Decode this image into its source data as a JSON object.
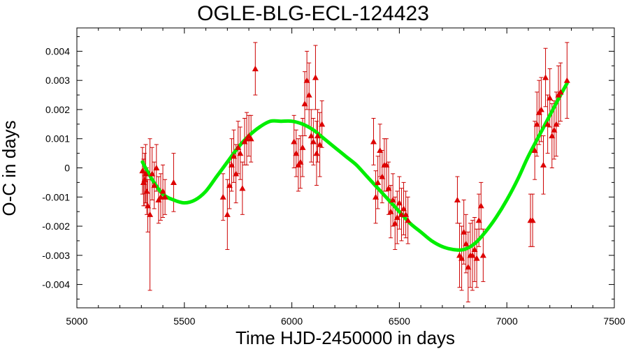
{
  "chart_data": {
    "type": "scatter",
    "title": "OGLE-BLG-ECL-124423",
    "xlabel": "Time HJD-2450000 in days",
    "ylabel": "O-C in days",
    "xlim": [
      5000,
      7500
    ],
    "ylim": [
      -0.0048,
      0.0048
    ],
    "x_ticks": [
      5000,
      5500,
      6000,
      6500,
      7000,
      7500
    ],
    "x_tick_labels": [
      "5000",
      "5500",
      "6000",
      "6500",
      "7000",
      "7500"
    ],
    "y_ticks": [
      0.004,
      0.003,
      0.002,
      0.001,
      0,
      -0.001,
      -0.002,
      -0.003,
      -0.004
    ],
    "y_tick_labels": [
      "0.004",
      "0.003",
      "0.002",
      "0.001",
      "0",
      "-0.001",
      "-0.002",
      "-0.003",
      "-0.004"
    ],
    "grid": false,
    "legend": "none",
    "colors": {
      "points": "#dd0000",
      "errorbars": "#cc0000",
      "fit": "#00ee00"
    },
    "series": [
      {
        "type": "scatter_errorbars",
        "marker": "triangle",
        "x": [
          5305,
          5310,
          5315,
          5320,
          5325,
          5330,
          5340,
          5350,
          5360,
          5370,
          5380,
          5390,
          5400,
          5410,
          5450,
          5680,
          5700,
          5710,
          5720,
          5730,
          5740,
          5750,
          5760,
          5770,
          5780,
          5790,
          5800,
          5810,
          5830,
          6010,
          6020,
          6030,
          6040,
          6050,
          6060,
          6070,
          6080,
          6090,
          6100,
          6110,
          6115,
          6120,
          6130,
          6140,
          6380,
          6390,
          6400,
          6410,
          6420,
          6430,
          6440,
          6450,
          6460,
          6470,
          6480,
          6490,
          6500,
          6510,
          6520,
          6530,
          6540,
          6770,
          6780,
          6790,
          6800,
          6810,
          6820,
          6830,
          6840,
          6850,
          6860,
          6870,
          6880,
          6890,
          7110,
          7120,
          7130,
          7140,
          7150,
          7160,
          7170,
          7180,
          7190,
          7200,
          7210,
          7220,
          7230,
          7240,
          7250,
          7280
        ],
        "y": [
          -0.0001,
          -0.0005,
          -0.0004,
          -0.0002,
          -0.0008,
          -0.0013,
          -0.0016,
          -0.0002,
          -0.0006,
          0.0,
          -0.0011,
          -0.001,
          -0.0008,
          -0.001,
          -0.0005,
          -0.001,
          -0.0016,
          -0.0006,
          0.0001,
          0.0004,
          -0.0002,
          0.0007,
          0.0005,
          -0.0007,
          0.0009,
          0.001,
          0.0011,
          0.001,
          0.0034,
          0.0009,
          0.0005,
          0.0001,
          0.0002,
          0.0007,
          0.0022,
          0.003,
          0.0025,
          0.0011,
          0.0009,
          0.0031,
          0.0005,
          0.0011,
          0.0008,
          0.0015,
          0.0009,
          -0.001,
          -0.0005,
          0.0006,
          -0.0003,
          0.0001,
          0.0001,
          -0.0007,
          -0.0015,
          -0.0011,
          -0.0019,
          -0.0017,
          -0.0012,
          -0.0016,
          -0.0014,
          -0.0016,
          -0.0018,
          -0.0011,
          -0.003,
          -0.0031,
          -0.0022,
          -0.0026,
          -0.0034,
          -0.003,
          -0.003,
          -0.0028,
          -0.0031,
          -0.0018,
          -0.0013,
          -0.003,
          -0.0018,
          -0.0018,
          0.0006,
          0.0015,
          0.0019,
          0.002,
          0.0001,
          0.0031,
          0.0015,
          0.0024,
          0.0011,
          0.0013,
          0.0015,
          0.0025,
          0.0026,
          0.003
        ],
        "err": [
          0.0008,
          0.0008,
          0.0009,
          0.001,
          0.0008,
          0.0009,
          0.0026,
          0.0009,
          0.0008,
          0.0008,
          0.0008,
          0.0008,
          0.0009,
          0.0006,
          0.001,
          0.0008,
          0.0012,
          0.0008,
          0.0009,
          0.0009,
          0.001,
          0.0009,
          0.0009,
          0.0009,
          0.0008,
          0.0009,
          0.0007,
          0.0008,
          0.0009,
          0.0009,
          0.0008,
          0.0009,
          0.0009,
          0.001,
          0.0011,
          0.001,
          0.0011,
          0.0009,
          0.0008,
          0.0011,
          0.0011,
          0.0009,
          0.0011,
          0.0008,
          0.0008,
          0.0009,
          0.0009,
          0.0009,
          0.0009,
          0.0009,
          0.0009,
          0.0009,
          0.0009,
          0.0009,
          0.0009,
          0.0009,
          0.0009,
          0.0009,
          0.0009,
          0.0008,
          0.0008,
          0.0008,
          0.0011,
          0.0011,
          0.0011,
          0.001,
          0.0012,
          0.0011,
          0.0012,
          0.0011,
          0.001,
          0.0009,
          0.0008,
          0.0009,
          0.0009,
          0.0009,
          0.001,
          0.0011,
          0.0011,
          0.0011,
          0.001,
          0.001,
          0.001,
          0.001,
          0.0011,
          0.001,
          0.0011,
          0.001,
          0.001,
          0.0013
        ]
      },
      {
        "type": "fit_line",
        "x": [
          5305,
          5350,
          5400,
          5450,
          5500,
          5550,
          5600,
          5650,
          5700,
          5750,
          5800,
          5850,
          5900,
          5950,
          6000,
          6050,
          6100,
          6150,
          6200,
          6250,
          6300,
          6350,
          6400,
          6450,
          6500,
          6550,
          6600,
          6650,
          6700,
          6750,
          6800,
          6850,
          6900,
          6950,
          7000,
          7050,
          7100,
          7150,
          7200,
          7250,
          7280
        ],
        "y": [
          0.0002,
          -0.0004,
          -0.0009,
          -0.0011,
          -0.0012,
          -0.0011,
          -0.0008,
          -0.0003,
          0.0002,
          0.0007,
          0.0011,
          0.0014,
          0.0016,
          0.0016,
          0.0016,
          0.0015,
          0.0013,
          0.001,
          0.0007,
          0.0004,
          0.0001,
          -0.0003,
          -0.0007,
          -0.0011,
          -0.0015,
          -0.0019,
          -0.0022,
          -0.0025,
          -0.0027,
          -0.0028,
          -0.0028,
          -0.0026,
          -0.0022,
          -0.0017,
          -0.0011,
          -0.0004,
          0.0004,
          0.0011,
          0.0018,
          0.0025,
          0.0029
        ]
      }
    ]
  }
}
